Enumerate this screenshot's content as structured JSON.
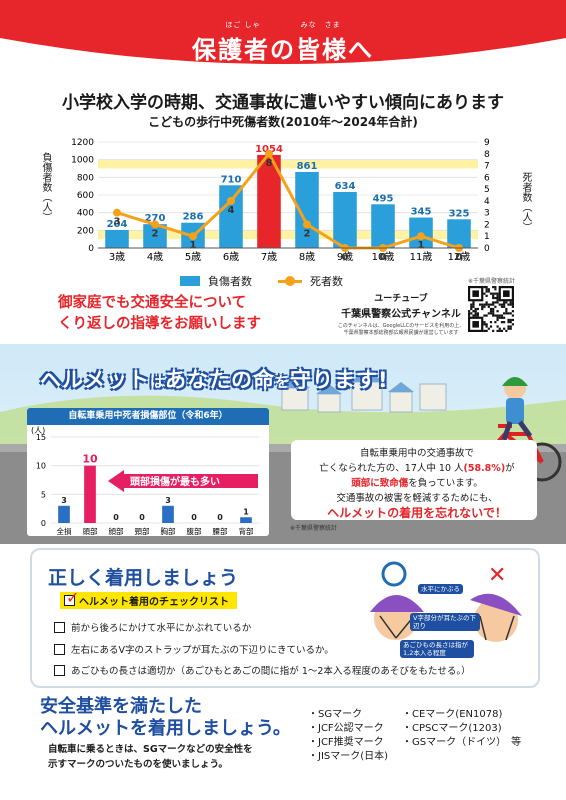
{
  "banner": {
    "ruby": "ほご しゃ　　　　　みな　さま",
    "title": "保護者の皆様へ",
    "color": "#e6262b"
  },
  "headline": "小学校入学の時期、交通事故に遭いやすい傾向にあります",
  "chart_title": "こどもの歩行中死傷者数(2010年～2024年合計)",
  "chart_data": [
    {
      "type": "bar",
      "title": "こどもの歩行中死傷者数(2010年～2024年合計)",
      "categories": [
        "3歳",
        "4歳",
        "5歳",
        "6歳",
        "7歳",
        "8歳",
        "9歳",
        "10歳",
        "11歳",
        "12歳"
      ],
      "series": [
        {
          "name": "負傷者数",
          "axis": "left",
          "type": "bar",
          "color": "#2b9fd9",
          "values": [
            204,
            270,
            286,
            710,
            1054,
            861,
            634,
            495,
            345,
            325
          ]
        },
        {
          "name": "死者数",
          "axis": "right",
          "type": "line",
          "color": "#f5a21a",
          "values": [
            3,
            2,
            1,
            4,
            8,
            2,
            0,
            0,
            1,
            0
          ]
        }
      ],
      "highlight_category": "7歳",
      "ylabel": "負傷者数（人）",
      "y2label": "死者数（人）",
      "ylim": [
        0,
        1200
      ],
      "y_ticks": [
        0,
        200,
        400,
        600,
        800,
        1000,
        1200
      ],
      "y2lim": [
        0,
        9
      ],
      "y2_ticks": [
        0,
        1,
        2,
        3,
        4,
        5,
        6,
        7,
        8,
        9
      ],
      "legend_position": "bottom"
    },
    {
      "type": "bar",
      "title": "自転車乗用中死者損傷部位（令和6年）",
      "categories": [
        "全損",
        "頭部",
        "顔部",
        "頸部",
        "胸部",
        "腹部",
        "腰部",
        "背部"
      ],
      "values": [
        3,
        10,
        0,
        0,
        3,
        0,
        0,
        1
      ],
      "highlight_category": "頭部",
      "ylabel": "(人)",
      "ylim": [
        0,
        15
      ],
      "y_ticks": [
        0,
        5,
        10,
        15
      ]
    }
  ],
  "legend": {
    "injured": "負傷者数",
    "deaths": "死者数"
  },
  "source1": "※千葉県警察統計",
  "appeal": {
    "line1": "御家庭でも交通安全について",
    "line2": "くり返しの指導をお願いします"
  },
  "youtube": {
    "label": "ユーチューブ",
    "name": "千葉県警察公式チャンネル",
    "note1": "このチャンネルは、GoogleLLCのサービスを利用の上、",
    "note2": "千葉県警察本部総務部広報県民課が運営しています"
  },
  "helmet": {
    "headline_a": "ヘルメット",
    "headline_b": "は",
    "headline_c": "あなたの命",
    "headline_d": "を",
    "headline_e": "守ります!",
    "chart2_title": "自転車乗用中死者損傷部位（令和6年）",
    "head_injury_label": "頭部損傷が最も多い",
    "source2": "※千葉県警察統計",
    "info": {
      "l1": "自転車乗用中の交通事故で",
      "l2a": "亡くなられた方の、17人中 10 人",
      "l2b": "(58.8%)",
      "l2c": "が",
      "l3a": "頭部に致命傷",
      "l3b": "を負っています。",
      "l3c": "交通事故の被害を軽減するためにも、",
      "l4": "ヘルメットの着用を忘れないで！"
    }
  },
  "checklist": {
    "title": "正しく着用しましょう",
    "badge": "ヘルメット着用のチェックリスト",
    "items": [
      "前から後ろにかけて水平にかぶれているか",
      "左右にあるV字のストラップが耳たぶの下辺りにきているか。",
      "あごひもの長さは適切か（あごひもとあごの間に指が 1～2本入る程度のあそびをもたせる。）"
    ],
    "diagram_notes": [
      "水平にかぶる",
      "V字部分が耳たぶの下辺り",
      "あごひもの長さは指が1,2本入る程度"
    ]
  },
  "standards": {
    "title_l1": "安全基準を満たした",
    "title_l2": "ヘルメットを着用しましょう。",
    "desc_l1": "自転車に乗るときは、SGマークなどの安全性を",
    "desc_l2": "示すマークのついたものを使いましょう。",
    "marks_left": [
      "・SGマーク",
      "・JCF公認マーク",
      "・JCF推奨マーク",
      "・JISマーク(日本)"
    ],
    "marks_right": [
      "・CEマーク(EN1078)",
      "・CPSCマーク(1203)",
      "・GSマーク（ドイツ）　等"
    ]
  }
}
